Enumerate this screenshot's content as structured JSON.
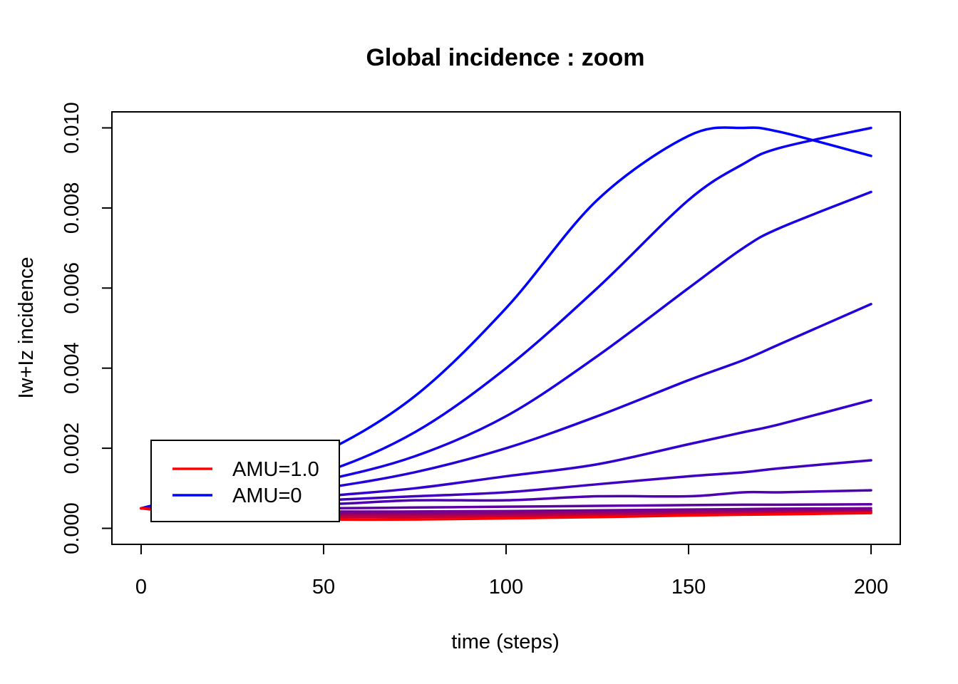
{
  "chart_data": {
    "type": "line",
    "title": "Global incidence : zoom",
    "xlabel": "time (steps)",
    "ylabel": "Iw+Iz incidence",
    "xlim": [
      -8,
      208
    ],
    "ylim": [
      -0.0004,
      0.0104
    ],
    "xticks": [
      0,
      50,
      100,
      150,
      200
    ],
    "xtick_labels": [
      "0",
      "50",
      "100",
      "150",
      "200"
    ],
    "yticks": [
      0.0,
      0.002,
      0.004,
      0.006,
      0.008,
      0.01
    ],
    "ytick_labels": [
      "0.000",
      "0.002",
      "0.004",
      "0.006",
      "0.008",
      "0.010"
    ],
    "grid": false,
    "legend": {
      "position": "bottom-left",
      "entries": [
        {
          "label": "AMU=1.0",
          "color": "#ff0000"
        },
        {
          "label": "AMU=0",
          "color": "#0000ff"
        }
      ]
    },
    "x": [
      0,
      25,
      50,
      75,
      100,
      125,
      150,
      165,
      175,
      200
    ],
    "series": [
      {
        "color": "#0000ff",
        "values": [
          0.0005,
          0.0011,
          0.0019,
          0.0033,
          0.0055,
          0.0082,
          0.0098,
          0.01,
          0.0099,
          0.0093
        ]
      },
      {
        "color": "#0d00f2",
        "values": [
          0.0005,
          0.0009,
          0.0014,
          0.0024,
          0.004,
          0.006,
          0.0082,
          0.0091,
          0.0095,
          0.01
        ]
      },
      {
        "color": "#1a00e5",
        "values": [
          0.0005,
          0.0008,
          0.0012,
          0.0018,
          0.0028,
          0.0043,
          0.006,
          0.007,
          0.0075,
          0.0084
        ]
      },
      {
        "color": "#2600d9",
        "values": [
          0.0005,
          0.0007,
          0.001,
          0.0014,
          0.002,
          0.0028,
          0.0037,
          0.0042,
          0.0046,
          0.0056
        ]
      },
      {
        "color": "#3300cc",
        "values": [
          0.0005,
          0.0006,
          0.0008,
          0.001,
          0.0013,
          0.0016,
          0.0021,
          0.0024,
          0.0026,
          0.0032
        ]
      },
      {
        "color": "#4000bf",
        "values": [
          0.0005,
          0.0006,
          0.0007,
          0.0008,
          0.0009,
          0.0011,
          0.0013,
          0.0014,
          0.0015,
          0.0017
        ]
      },
      {
        "color": "#4d00b2",
        "values": [
          0.0005,
          0.0006,
          0.0006,
          0.0007,
          0.0007,
          0.0008,
          0.0008,
          0.0009,
          0.0009,
          0.00095
        ]
      },
      {
        "color": "#5c00a3",
        "values": [
          0.0005,
          0.0005,
          0.0005,
          0.00052,
          0.00054,
          0.00056,
          0.00058,
          0.00059,
          0.00059,
          0.0006
        ]
      },
      {
        "color": "#700091",
        "values": [
          0.0005,
          0.00045,
          0.00042,
          0.00042,
          0.00043,
          0.00045,
          0.00047,
          0.00048,
          0.00049,
          0.0005
        ]
      },
      {
        "color": "#85007a",
        "values": [
          0.0005,
          0.0004,
          0.00037,
          0.00037,
          0.00038,
          0.0004,
          0.00042,
          0.00043,
          0.00044,
          0.00045
        ]
      },
      {
        "color": "#a3005c",
        "values": [
          0.0005,
          0.00035,
          0.00032,
          0.00032,
          0.00034,
          0.00036,
          0.00038,
          0.0004,
          0.00041,
          0.00042
        ]
      },
      {
        "color": "#c2003d",
        "values": [
          0.0005,
          0.0003,
          0.00028,
          0.00028,
          0.0003,
          0.00032,
          0.00035,
          0.00037,
          0.00038,
          0.0004
        ]
      },
      {
        "color": "#ff0000",
        "values": [
          0.0005,
          0.00025,
          0.00022,
          0.00022,
          0.00025,
          0.00028,
          0.00032,
          0.00034,
          0.00035,
          0.00038
        ]
      }
    ]
  }
}
